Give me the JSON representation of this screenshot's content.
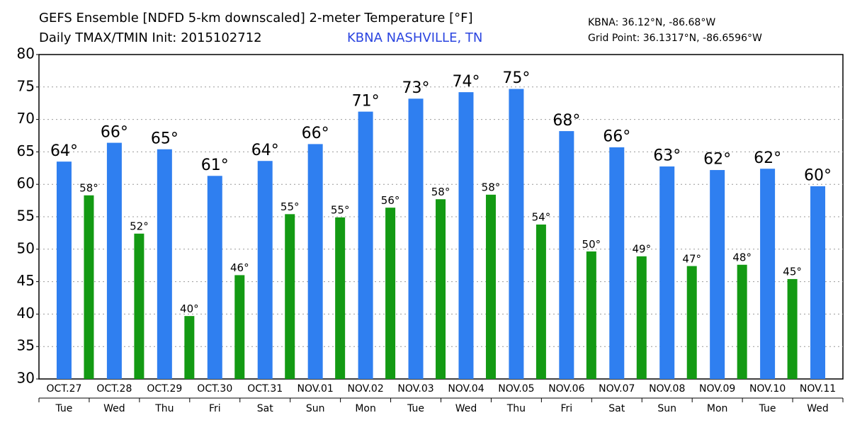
{
  "chart_data": {
    "type": "bar",
    "title": "GEFS Ensemble [NDFD 5-km downscaled] 2-meter Temperature [°F]",
    "subtitle": "Daily TMAX/TMIN Init: 2015102712",
    "location": "KBNA NASHVILLE, TN",
    "station_coords": "KBNA: 36.12°N, -86.68°W",
    "grid_point": "Grid Point: 36.1317°N, -86.6596°W",
    "categories": [
      "OCT.27",
      "OCT.28",
      "OCT.29",
      "OCT.30",
      "OCT.31",
      "NOV.01",
      "NOV.02",
      "NOV.03",
      "NOV.04",
      "NOV.05",
      "NOV.06",
      "NOV.07",
      "NOV.08",
      "NOV.09",
      "NOV.10",
      "NOV.11"
    ],
    "days": [
      "Tue",
      "Wed",
      "Thu",
      "Fri",
      "Sat",
      "Sun",
      "Mon",
      "Tue",
      "Wed",
      "Thu",
      "Fri",
      "Sat",
      "Sun",
      "Mon",
      "Tue",
      "Wed"
    ],
    "series": [
      {
        "color": "#2f7ff0",
        "values": [
          63.5,
          66.4,
          65.4,
          61.3,
          63.6,
          66.2,
          71.2,
          73.2,
          74.2,
          74.7,
          68.2,
          65.7,
          62.75,
          62.2,
          62.4,
          59.7
        ],
        "value_labels": [
          "64°",
          "66°",
          "65°",
          "61°",
          "64°",
          "66°",
          "71°",
          "73°",
          "74°",
          "75°",
          "68°",
          "66°",
          "63°",
          "62°",
          "62°",
          "60°"
        ]
      },
      {
        "color": "#139a13",
        "values": [
          58.3,
          52.4,
          39.7,
          46.0,
          55.4,
          54.9,
          56.4,
          57.7,
          58.4,
          53.8,
          49.65,
          48.9,
          47.4,
          47.6,
          45.4,
          null
        ],
        "value_labels": [
          "58°",
          "52°",
          "40°",
          "46°",
          "55°",
          "55°",
          "56°",
          "58°",
          "58°",
          "54°",
          "50°",
          "49°",
          "47°",
          "48°",
          "45°",
          null
        ]
      }
    ],
    "ylim": [
      30,
      80
    ],
    "yticks": [
      30,
      35,
      40,
      45,
      50,
      55,
      60,
      65,
      70,
      75,
      80
    ],
    "grid": true
  }
}
